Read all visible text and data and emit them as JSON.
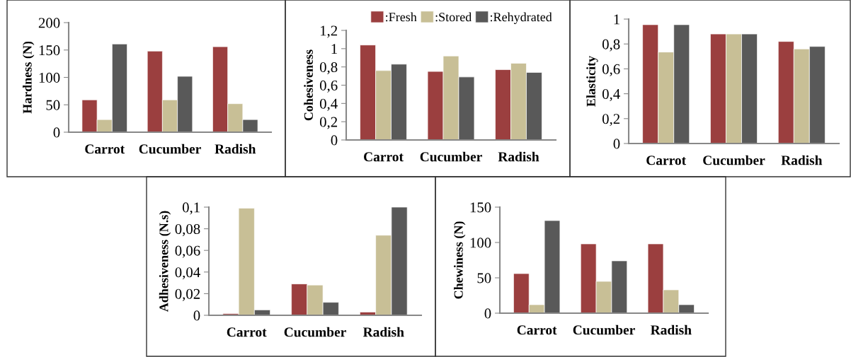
{
  "chart_data": [
    {
      "type": "bar",
      "ylabel": "Hardness (N)",
      "categories": [
        "Carrot",
        "Cucumber",
        "Radish"
      ],
      "ylim": [
        0,
        200
      ],
      "yticks": [
        0,
        50,
        100,
        150,
        200
      ],
      "grid": false,
      "legend": false,
      "series": [
        {
          "color": "#9b3f3f",
          "values": [
            59,
            148,
            156
          ]
        },
        {
          "color": "#c8bf96",
          "values": [
            23,
            59,
            52
          ]
        },
        {
          "color": "#595959",
          "values": [
            161,
            102,
            23
          ]
        }
      ]
    },
    {
      "type": "bar",
      "ylabel": "Cohesiveness",
      "categories": [
        "Carrot",
        "Cucumber",
        "Radish"
      ],
      "ylim": [
        0,
        1.2
      ],
      "yticks": [
        0,
        {
          "value": 0.2,
          "label": "0,2"
        },
        {
          "value": 0.4,
          "label": "0,4"
        },
        {
          "value": 0.6,
          "label": "0,6"
        },
        {
          "value": 0.8,
          "label": "0,8"
        },
        1,
        {
          "value": 1.2,
          "label": "1,2"
        }
      ],
      "grid": false,
      "legend": "top",
      "series": [
        {
          "name": ":Fresh",
          "color": "#9b3f3f",
          "values": [
            1.04,
            0.75,
            0.77
          ]
        },
        {
          "name": ":Stored",
          "color": "#c8bf96",
          "values": [
            0.76,
            0.92,
            0.84
          ]
        },
        {
          "name": ":Rehydrated",
          "color": "#595959",
          "values": [
            0.83,
            0.69,
            0.74
          ]
        }
      ]
    },
    {
      "type": "bar",
      "ylabel": "Elasticity",
      "categories": [
        "Carrot",
        "Cucumber",
        "Radish"
      ],
      "ylim": [
        0,
        1
      ],
      "yticks": [
        0,
        {
          "value": 0.2,
          "label": "0,2"
        },
        {
          "value": 0.4,
          "label": "0,4"
        },
        {
          "value": 0.6,
          "label": "0,6"
        },
        {
          "value": 0.8,
          "label": "0,8"
        },
        1
      ],
      "grid": false,
      "legend": false,
      "series": [
        {
          "color": "#9b3f3f",
          "values": [
            0.955,
            0.88,
            0.82
          ]
        },
        {
          "color": "#c8bf96",
          "values": [
            0.735,
            0.88,
            0.76
          ]
        },
        {
          "color": "#595959",
          "values": [
            0.955,
            0.88,
            0.78
          ]
        }
      ]
    },
    {
      "type": "bar",
      "ylabel": "Adhesiveness (N.s)",
      "categories": [
        "Carrot",
        "Cucumber",
        "Radish"
      ],
      "ylim": [
        0,
        0.1
      ],
      "yticks": [
        0,
        {
          "value": 0.02,
          "label": "0,02"
        },
        {
          "value": 0.04,
          "label": "0,04"
        },
        {
          "value": 0.06,
          "label": "0,06"
        },
        {
          "value": 0.08,
          "label": "0,08"
        },
        {
          "value": 0.1,
          "label": "0,1"
        }
      ],
      "grid": false,
      "legend": false,
      "series": [
        {
          "color": "#9b3f3f",
          "values": [
            0.0015,
            0.029,
            0.003
          ]
        },
        {
          "color": "#c8bf96",
          "values": [
            0.099,
            0.028,
            0.074
          ]
        },
        {
          "color": "#595959",
          "values": [
            0.005,
            0.012,
            0.1
          ]
        }
      ]
    },
    {
      "type": "bar",
      "ylabel": "Chewiness (N)",
      "categories": [
        "Carrot",
        "Cucumber",
        "Radish"
      ],
      "ylim": [
        0,
        150
      ],
      "yticks": [
        0,
        50,
        100,
        150
      ],
      "grid": false,
      "legend": false,
      "series": [
        {
          "color": "#9b3f3f",
          "values": [
            56,
            98,
            98
          ]
        },
        {
          "color": "#c8bf96",
          "values": [
            12,
            45,
            33
          ]
        },
        {
          "color": "#595959",
          "values": [
            131,
            74,
            12
          ]
        }
      ]
    }
  ]
}
